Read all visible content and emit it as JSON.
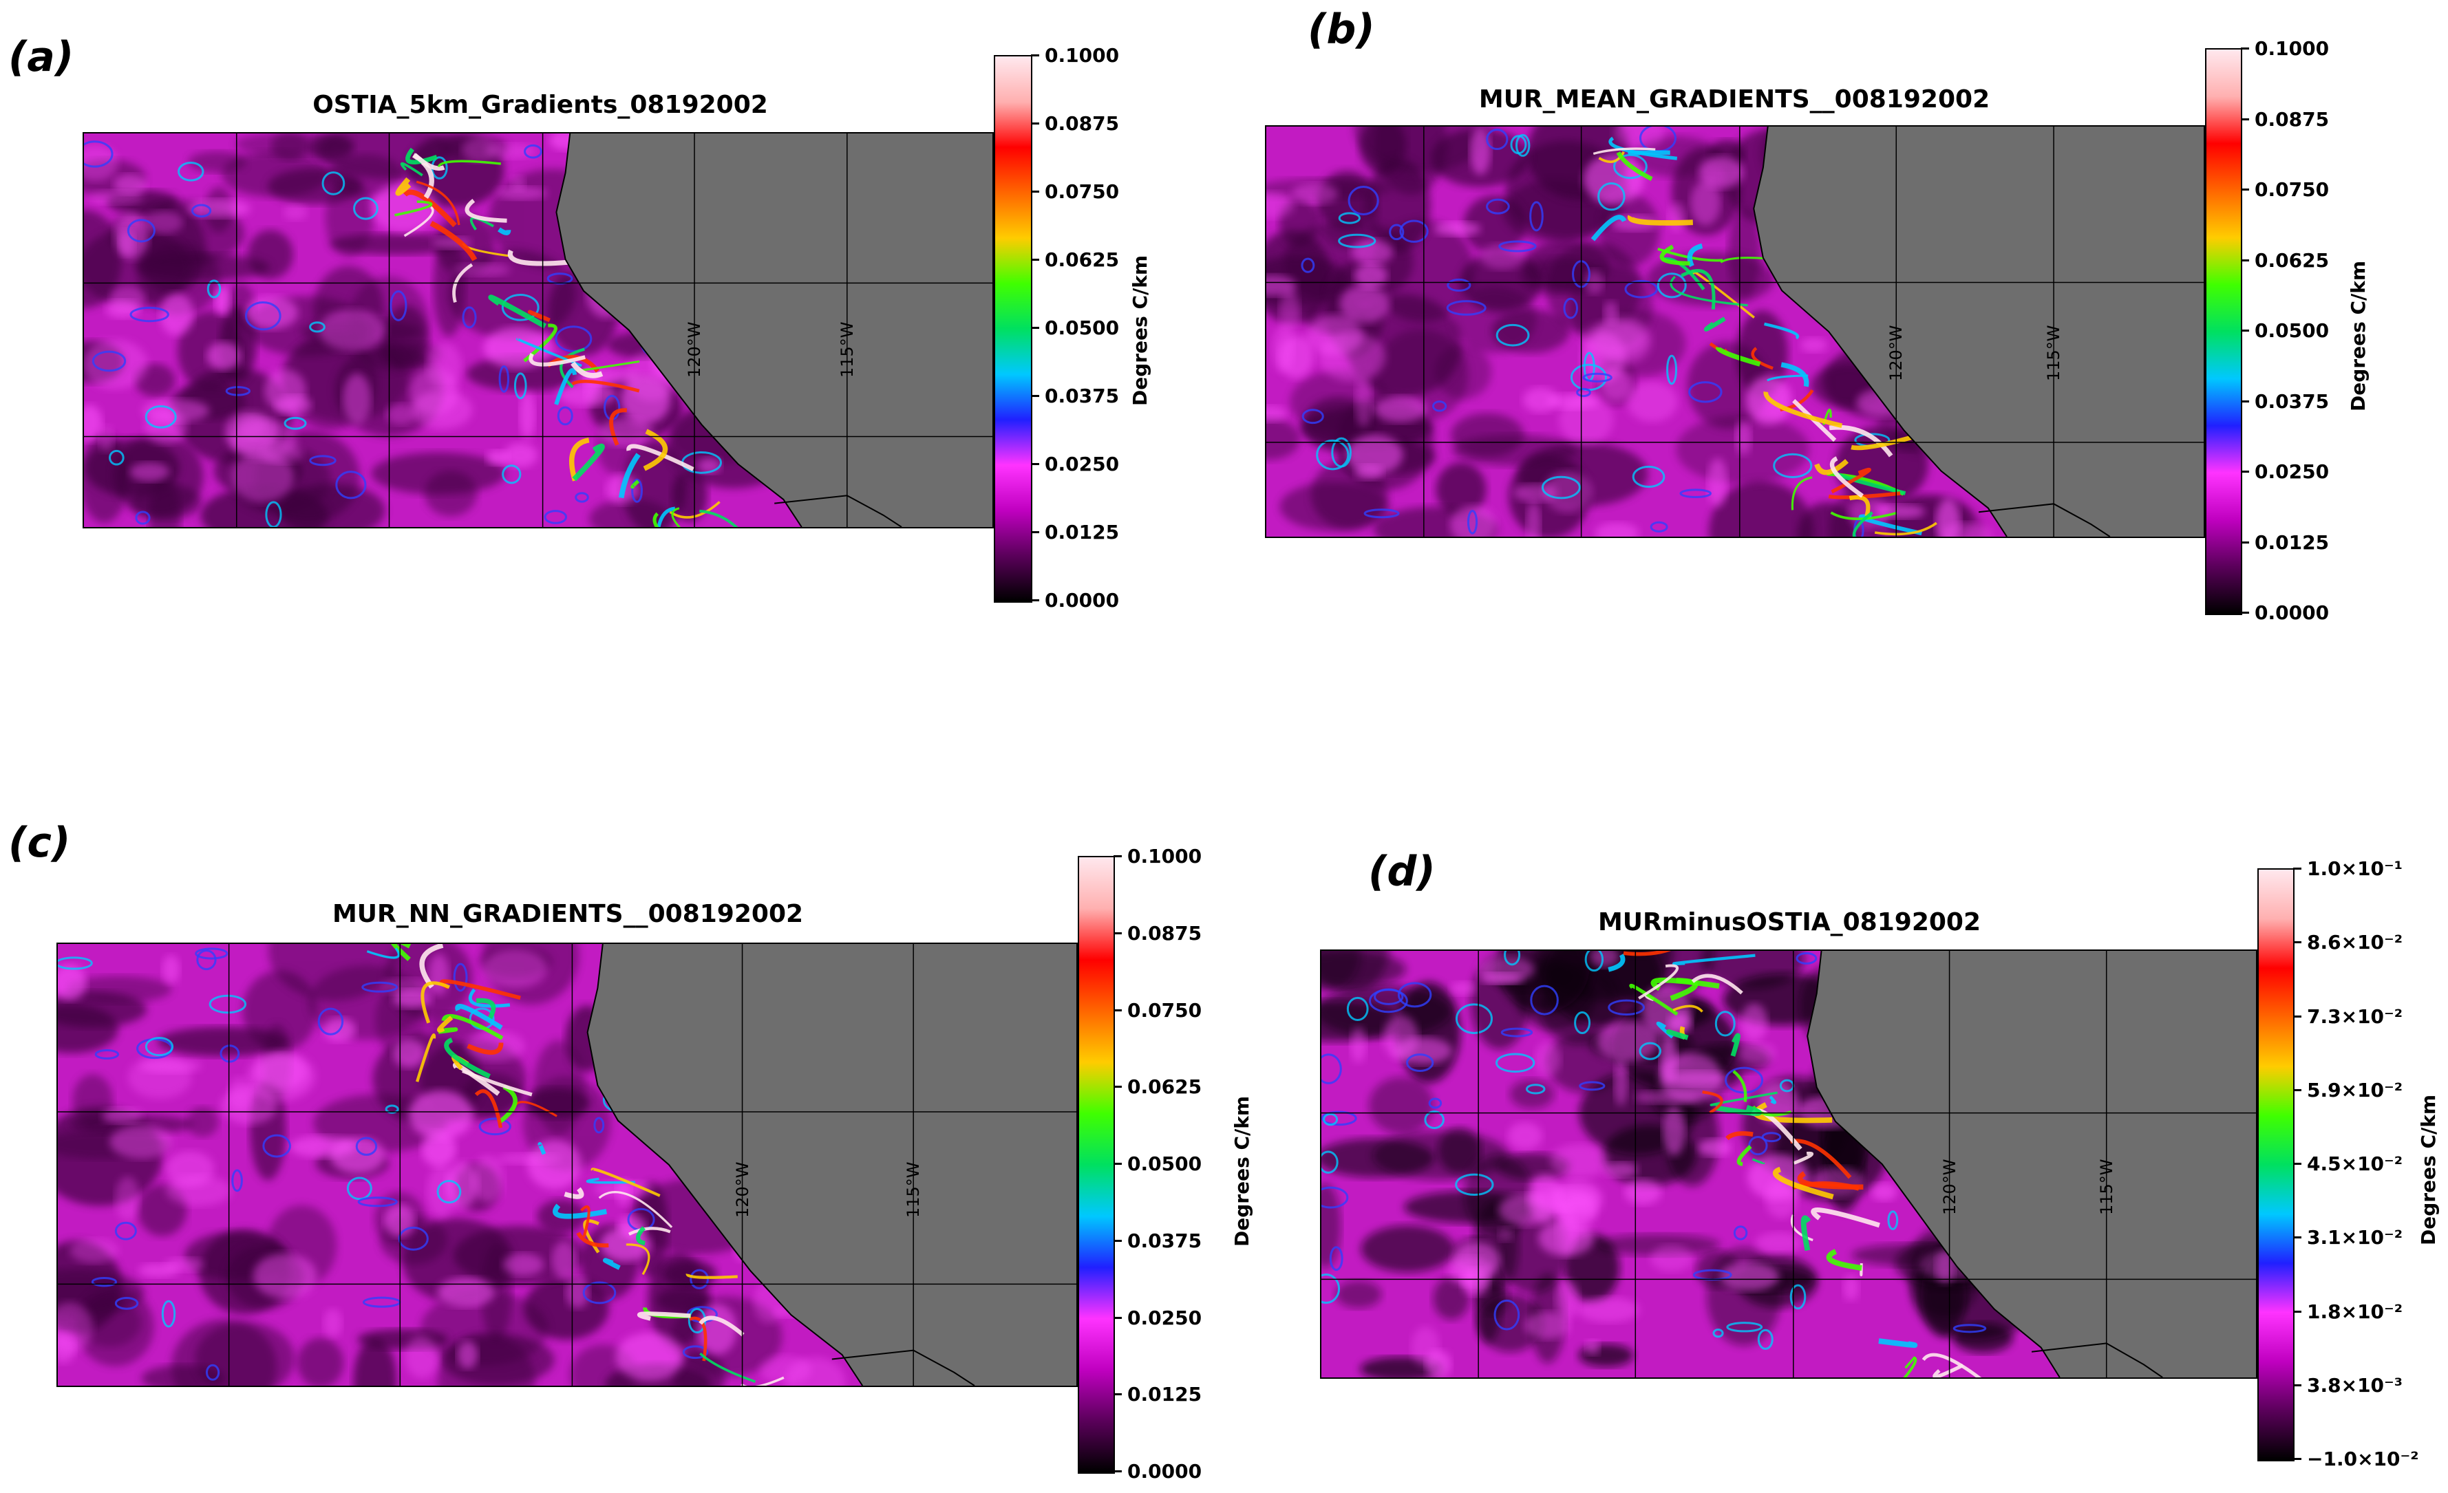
{
  "colors": {
    "land": "#6e6e6e",
    "ocean_base": "#c21bc2",
    "colormap": [
      "#000000",
      "#5a005a",
      "#c000c0",
      "#ff33ff",
      "#2020ff",
      "#00c8ff",
      "#00e060",
      "#40ff00",
      "#ffcc00",
      "#ff6600",
      "#ff0000",
      "#ffb0b0",
      "#ffe8ee"
    ]
  },
  "chart_data": [
    {
      "type": "heatmap",
      "letter": "(a)",
      "title": "OSTIA_5km_Gradients_08192002",
      "colorbar_label": "Degrees C/km",
      "colorbar_ticks": [
        "0.1000",
        "0.0875",
        "0.0750",
        "0.0625",
        "0.0500",
        "0.0375",
        "0.0250",
        "0.0125",
        "0.0000"
      ],
      "colorbar_range": [
        0.0,
        0.1
      ],
      "lon_labels": [
        "120°W",
        "115°W"
      ]
    },
    {
      "type": "heatmap",
      "letter": "(b)",
      "title": "MUR_MEAN_GRADIENTS__008192002",
      "colorbar_label": "Degrees C/km",
      "colorbar_ticks": [
        "0.1000",
        "0.0875",
        "0.0750",
        "0.0625",
        "0.0500",
        "0.0375",
        "0.0250",
        "0.0125",
        "0.0000"
      ],
      "colorbar_range": [
        0.0,
        0.1
      ],
      "lon_labels": [
        "120°W",
        "115°W"
      ]
    },
    {
      "type": "heatmap",
      "letter": "(c)",
      "title": "MUR_NN_GRADIENTS__008192002",
      "colorbar_label": "Degrees C/km",
      "colorbar_ticks": [
        "0.1000",
        "0.0875",
        "0.0750",
        "0.0625",
        "0.0500",
        "0.0375",
        "0.0250",
        "0.0125",
        "0.0000"
      ],
      "colorbar_range": [
        0.0,
        0.1
      ],
      "lon_labels": [
        "120°W",
        "115°W"
      ]
    },
    {
      "type": "heatmap",
      "letter": "(d)",
      "title": "MURminusOSTIA_08192002",
      "colorbar_label": "Degrees C/km",
      "colorbar_ticks": [
        "1.0×10⁻¹",
        "8.6×10⁻²",
        "7.3×10⁻²",
        "5.9×10⁻²",
        "4.5×10⁻²",
        "3.1×10⁻²",
        "1.8×10⁻²",
        "3.8×10⁻³",
        "−1.0×10⁻²"
      ],
      "colorbar_range": [
        -0.01,
        0.1
      ],
      "lon_labels": [
        "120°W",
        "115°W"
      ]
    }
  ]
}
